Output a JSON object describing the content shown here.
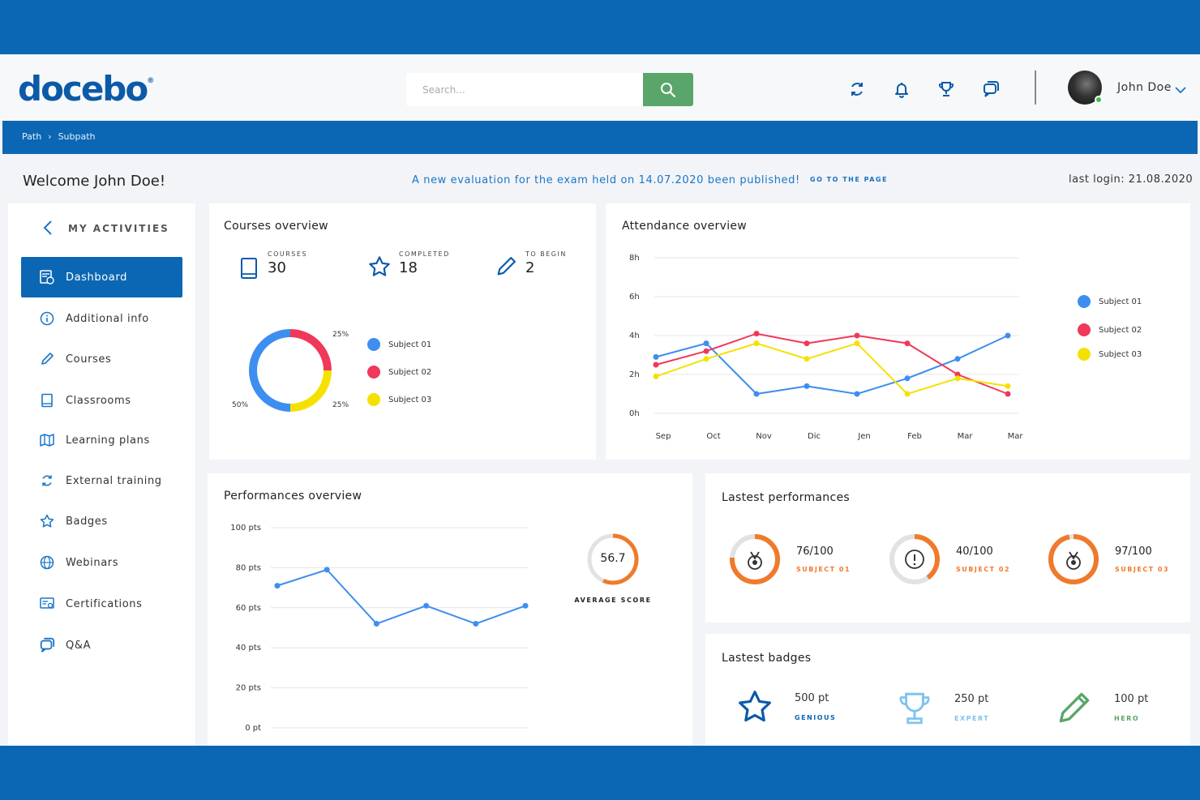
{
  "brand": {
    "logo": "docebo",
    "logo_mark": "®"
  },
  "search": {
    "placeholder": "Search..."
  },
  "header_icons": [
    "sync-icon",
    "bell-icon",
    "trophy-icon",
    "chat-icon"
  ],
  "user": {
    "name": "John Doe",
    "status": "online"
  },
  "breadcrumb": [
    "Path",
    "Subpath"
  ],
  "welcome": "Welcome John Doe!",
  "notice": {
    "text": "A new evaluation for the exam held on 14.07.2020 been published!",
    "link": "GO TO THE PAGE"
  },
  "last_login": "last login: 21.08.2020",
  "sidebar": {
    "title": "MY ACTIVITIES",
    "items": [
      {
        "label": "Dashboard",
        "icon": "dashboard-icon",
        "active": true
      },
      {
        "label": "Additional info",
        "icon": "info-icon"
      },
      {
        "label": "Courses",
        "icon": "pencil-icon"
      },
      {
        "label": "Classrooms",
        "icon": "book-icon"
      },
      {
        "label": "Learning plans",
        "icon": "map-icon"
      },
      {
        "label": "External training",
        "icon": "sync-icon"
      },
      {
        "label": "Badges",
        "icon": "star-icon"
      },
      {
        "label": "Webinars",
        "icon": "globe-icon"
      },
      {
        "label": "Certifications",
        "icon": "certificate-icon"
      },
      {
        "label": "Q&A",
        "icon": "chat-icon"
      }
    ]
  },
  "colors": {
    "primary": "#0b67b3",
    "subject1": "#3d8ef0",
    "subject2": "#f0385a",
    "subject3": "#f5e100",
    "orange": "#f07a2c",
    "green": "#5aa56a"
  },
  "courses_overview": {
    "title": "Courses overview",
    "stats": [
      {
        "label": "COURSES",
        "value": "30",
        "icon": "book-icon"
      },
      {
        "label": "COMPLETED",
        "value": "18",
        "icon": "star-icon"
      },
      {
        "label": "TO BEGIN",
        "value": "2",
        "icon": "pencil-icon"
      }
    ],
    "legend": [
      "Subject 01",
      "Subject 02",
      "Subject 03"
    ]
  },
  "attendance_overview": {
    "title": "Attendance overview",
    "legend": [
      "Subject 01",
      "Subject 02",
      "Subject 03"
    ]
  },
  "performances_overview": {
    "title": "Performances overview",
    "average_score": "56.7",
    "average_label": "AVERAGE SCORE"
  },
  "latest_performances": {
    "title": "Lastest performances",
    "items": [
      {
        "score": "76/100",
        "subject": "SUBJECT 01",
        "icon": "medal-icon",
        "progress": 0.76
      },
      {
        "score": "40/100",
        "subject": "SUBJECT 02",
        "icon": "alert-icon",
        "progress": 0.4
      },
      {
        "score": "97/100",
        "subject": "SUBJECT 03",
        "icon": "medal-icon",
        "progress": 0.97
      }
    ]
  },
  "latest_badges": {
    "title": "Lastest badges",
    "items": [
      {
        "points": "500 pt",
        "name": "GENIOUS",
        "icon": "star-icon",
        "color": "#0b67b3"
      },
      {
        "points": "250 pt",
        "name": "EXPERT",
        "icon": "trophy-icon",
        "color": "#7fc3ef"
      },
      {
        "points": "100 pt",
        "name": "HERO",
        "icon": "pencil-icon",
        "color": "#5aa56a"
      }
    ]
  },
  "chart_data": [
    {
      "type": "pie",
      "title": "Courses overview",
      "categories": [
        "Subject 01",
        "Subject 02",
        "Subject 03"
      ],
      "values": [
        50,
        25,
        25
      ],
      "labels": [
        "50%",
        "25%",
        "25%"
      ]
    },
    {
      "type": "line",
      "title": "Attendance overview",
      "categories": [
        "Sep",
        "Oct",
        "Nov",
        "Dic",
        "Jen",
        "Feb",
        "Mar",
        "Mar"
      ],
      "y_ticks": [
        "0h",
        "2h",
        "4h",
        "6h",
        "8h"
      ],
      "ylim": [
        0,
        8
      ],
      "series": [
        {
          "name": "Subject 01",
          "values": [
            2.9,
            3.6,
            1.0,
            1.4,
            1.0,
            1.8,
            2.8,
            4.0
          ]
        },
        {
          "name": "Subject 02",
          "values": [
            2.5,
            3.2,
            4.1,
            3.6,
            4.0,
            3.6,
            2.0,
            1.0
          ]
        },
        {
          "name": "Subject 03",
          "values": [
            1.9,
            2.8,
            3.6,
            2.8,
            3.6,
            1.0,
            1.8,
            1.4
          ]
        }
      ]
    },
    {
      "type": "line",
      "title": "Performances overview",
      "x_count": 6,
      "y_ticks": [
        "0 pt",
        "20 pts",
        "40 pts",
        "60 pts",
        "80 pts",
        "100 pts"
      ],
      "ylim": [
        0,
        100
      ],
      "series": [
        {
          "values": [
            71,
            79,
            52,
            61,
            52,
            61
          ]
        }
      ]
    }
  ]
}
